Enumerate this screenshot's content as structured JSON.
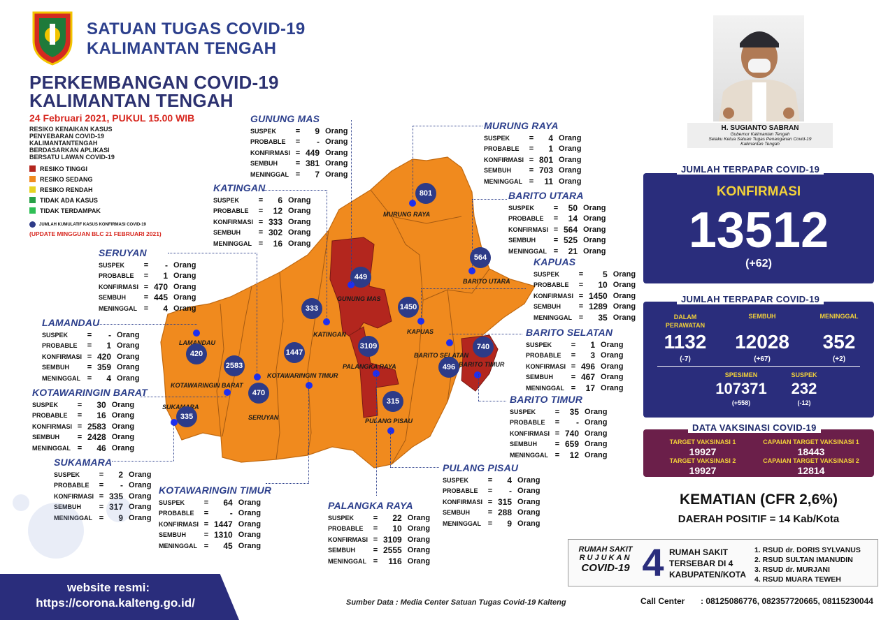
{
  "header": {
    "org_line1": "SATUAN TUGAS COVID-19",
    "org_line2": "KALIMANTAN TENGAH",
    "title_line1": "PERKEMBANGAN COVID-19",
    "title_line2": "KALIMANTAN TENGAH",
    "date": "24 Februari 2021, PUKUL 15.00 WIB"
  },
  "legend": {
    "heading": [
      "RESIKO KENAIKAN KASUS",
      "PENYEBARAN COVID-19",
      "KALIMANTANTENGAH",
      "BERDASARKAN APLIKASI",
      "BERSATU LAWAN COVID-19"
    ],
    "items": [
      {
        "label": "RESIKO TINGGI",
        "color": "#b3261e"
      },
      {
        "label": "RESIKO SEDANG",
        "color": "#f08a1e"
      },
      {
        "label": "RESIKO RENDAH",
        "color": "#e7d321"
      },
      {
        "label": "TIDAK ADA KASUS",
        "color": "#27a046"
      },
      {
        "label": "TIDAK TERDAMPAK",
        "color": "#2fbf55"
      }
    ],
    "cumulative_note": "JUMLAH KUMULATIF KASUS KONFIRMASI COVID-19",
    "update_note": "(UPDATE MINGGUAN BLC 21 FEBRUARI 2021)"
  },
  "stat_labels": {
    "suspek": "SUSPEK",
    "probable": "PROBABLE",
    "konfirmasi": "KONFIRMASI",
    "sembuh": "SEMBUH",
    "meninggal": "MENINGGAL",
    "eq": "=",
    "unit": "Orang"
  },
  "regions": {
    "gunung_mas": {
      "name": "GUNUNG MAS",
      "suspek": "9",
      "probable": "-",
      "konfirmasi": "449",
      "sembuh": "381",
      "meninggal": "7",
      "map_label": "GUNUNG MAS",
      "bubble": "449"
    },
    "murung_raya": {
      "name": "MURUNG RAYA",
      "suspek": "4",
      "probable": "1",
      "konfirmasi": "801",
      "sembuh": "703",
      "meninggal": "11",
      "map_label": "MURUNG RAYA",
      "bubble": "801"
    },
    "katingan": {
      "name": "KATINGAN",
      "suspek": "6",
      "probable": "12",
      "konfirmasi": "333",
      "sembuh": "302",
      "meninggal": "16",
      "map_label": "KATINGAN",
      "bubble": "333"
    },
    "barito_utara": {
      "name": "BARITO UTARA",
      "suspek": "50",
      "probable": "14",
      "konfirmasi": "564",
      "sembuh": "525",
      "meninggal": "21",
      "map_label": "BARITO UTARA",
      "bubble": "564"
    },
    "seruyan": {
      "name": "SERUYAN",
      "suspek": "-",
      "probable": "1",
      "konfirmasi": "470",
      "sembuh": "445",
      "meninggal": "4",
      "map_label": "SERUYAN",
      "bubble": "470"
    },
    "kapuas": {
      "name": "KAPUAS",
      "suspek": "5",
      "probable": "10",
      "konfirmasi": "1450",
      "sembuh": "1289",
      "meninggal": "35",
      "map_label": "KAPUAS",
      "bubble": "1450"
    },
    "lamandau": {
      "name": "LAMANDAU",
      "suspek": "-",
      "probable": "1",
      "konfirmasi": "420",
      "sembuh": "359",
      "meninggal": "4",
      "map_label": "LAMANDAU",
      "bubble": "420"
    },
    "barito_selatan": {
      "name": "BARITO SELATAN",
      "suspek": "1",
      "probable": "3",
      "konfirmasi": "496",
      "sembuh": "467",
      "meninggal": "17",
      "map_label": "BARITO SELATAN",
      "bubble": "496"
    },
    "kotawaringin_barat": {
      "name": "KOTAWARINGIN BARAT",
      "suspek": "30",
      "probable": "16",
      "konfirmasi": "2583",
      "sembuh": "2428",
      "meninggal": "46",
      "map_label": "KOTAWARINGIN BARAT",
      "bubble": "2583"
    },
    "barito_timur": {
      "name": "BARITO TIMUR",
      "suspek": "35",
      "probable": "-",
      "konfirmasi": "740",
      "sembuh": "659",
      "meninggal": "12",
      "map_label": "BARITO TIMUR",
      "bubble": "740"
    },
    "sukamara": {
      "name": "SUKAMARA",
      "suspek": "2",
      "probable": "-",
      "konfirmasi": "335",
      "sembuh": "317",
      "meninggal": "9",
      "map_label": "SUKAMARA",
      "bubble": "335"
    },
    "pulang_pisau": {
      "name": "PULANG PISAU",
      "suspek": "4",
      "probable": "-",
      "konfirmasi": "315",
      "sembuh": "288",
      "meninggal": "9",
      "map_label": "PULANG PISAU",
      "bubble": "315"
    },
    "kotawaringin_timur": {
      "name": "KOTAWARINGIN TIMUR",
      "suspek": "64",
      "probable": "-",
      "konfirmasi": "1447",
      "sembuh": "1310",
      "meninggal": "45",
      "map_label": "KOTAWARINGIN TIMUR",
      "bubble": "1447"
    },
    "palangka_raya": {
      "name": "PALANGKA RAYA",
      "suspek": "22",
      "probable": "10",
      "konfirmasi": "3109",
      "sembuh": "2555",
      "meninggal": "116",
      "map_label": "PALANGKA RAYA",
      "bubble": "3109"
    }
  },
  "governor": {
    "name": "H. SUGIANTO SABRAN",
    "role1": "Gubernur Kalimantan Tengah",
    "role2": "Selaku Ketua Satuan Tugas Penanganan Covid-19",
    "role3": "Kalimantan Tengah"
  },
  "exposed": {
    "title": "JUMLAH TERPAPAR COVID-19",
    "konfirmasi_label": "KONFIRMASI",
    "konfirmasi": "13512",
    "konfirmasi_delta": "(+62)"
  },
  "breakdown": {
    "title": "JUMLAH TERPAPAR COVID-19",
    "dalam_label1": "DALAM",
    "dalam_label2": "PERAWATAN",
    "dalam": "1132",
    "dalam_delta": "(-7)",
    "sembuh_label": "SEMBUH",
    "sembuh": "12028",
    "sembuh_delta": "(+67)",
    "meninggal_label": "MENINGGAL",
    "meninggal": "352",
    "meninggal_delta": "(+2)",
    "spesimen_label": "SPESIMEN",
    "spesimen": "107371",
    "spesimen_delta": "(+558)",
    "suspek_label": "SUSPEK",
    "suspek": "232",
    "suspek_delta": "(-12)"
  },
  "vaccination": {
    "title": "DATA VAKSINASI COVID-19",
    "t1_label": "TARGET VAKSINASI 1",
    "t1": "19927",
    "c1_label": "CAPAIAN TARGET VAKSINASI 1",
    "c1": "18443",
    "t2_label": "TARGET VAKSINASI 2",
    "t2": "19927",
    "c2_label": "CAPAIAN TARGET VAKSINASI 2",
    "c2": "12814"
  },
  "deaths": {
    "cfr": "KEMATIAN (CFR 2,6%)",
    "positive_area": "DAERAH POSITIF = 14 Kab/Kota"
  },
  "hospitals": {
    "label1": "RUMAH SAKIT",
    "label2": "RUJUKAN",
    "label3": "COVID-19",
    "count": "4",
    "desc1": "RUMAH SAKIT",
    "desc2": "TERSEBAR DI 4",
    "desc3": "KABUPATEN/KOTA",
    "list": [
      "1. RSUD dr. DORIS SYLVANUS",
      "2. RSUD SULTAN IMANUDIN",
      "3. RSUD dr. MURJANI",
      "4. RSUD MUARA TEWEH"
    ]
  },
  "call_center": {
    "label": "Call Center",
    "numbers": ": 08125086776, 082357720665, 08115230044"
  },
  "website": {
    "label": "website resmi:",
    "url": "https://corona.kalteng.go.id/"
  },
  "source": "Sumber Data : Media Center Satuan Tugas Covid-19 Kalteng",
  "colors": {
    "navy": "#2a2d7c",
    "accent": "#2c3f8c",
    "high": "#b3261e",
    "medium": "#f08a1e",
    "vacc": "#6b1f4a"
  }
}
